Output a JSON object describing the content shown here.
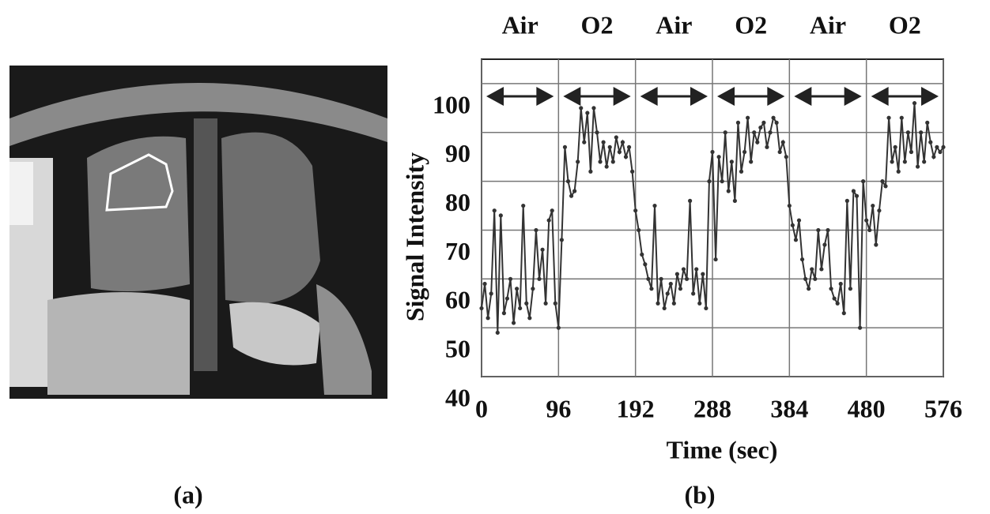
{
  "panel_labels": [
    "(a)",
    "(b)"
  ],
  "chart_data": {
    "type": "line",
    "xlabel": "Time (sec)",
    "ylabel": "Signal Intensity",
    "phases": [
      "Air",
      "O2",
      "Air",
      "O2",
      "Air",
      "O2"
    ],
    "color": "#333333",
    "x": [
      0,
      4,
      8,
      12,
      16,
      20,
      24,
      28,
      32,
      36,
      40,
      44,
      48,
      52,
      56,
      60,
      64,
      68,
      72,
      76,
      80,
      84,
      88,
      92,
      96,
      100,
      104,
      108,
      112,
      116,
      120,
      124,
      128,
      132,
      136,
      140,
      144,
      148,
      152,
      156,
      160,
      164,
      168,
      172,
      176,
      180,
      184,
      188,
      192,
      196,
      200,
      204,
      208,
      212,
      216,
      220,
      224,
      228,
      232,
      236,
      240,
      244,
      248,
      252,
      256,
      260,
      264,
      268,
      272,
      276,
      280,
      284,
      288,
      292,
      296,
      300,
      304,
      308,
      312,
      316,
      320,
      324,
      328,
      332,
      336,
      340,
      344,
      348,
      352,
      356,
      360,
      364,
      368,
      372,
      376,
      380,
      384,
      388,
      392,
      396,
      400,
      404,
      408,
      412,
      416,
      420,
      424,
      428,
      432,
      436,
      440,
      444,
      448,
      452,
      456,
      460,
      464,
      468,
      472,
      476,
      480,
      484,
      488,
      492,
      496,
      500,
      504,
      508,
      512,
      516,
      520,
      524,
      528,
      532,
      536,
      540,
      544,
      548,
      552,
      556,
      560,
      564,
      568,
      572,
      576
    ],
    "values": [
      54,
      59,
      52,
      57,
      74,
      49,
      73,
      53,
      56,
      60,
      51,
      58,
      54,
      75,
      55,
      52,
      58,
      70,
      60,
      66,
      55,
      72,
      74,
      55,
      50,
      68,
      87,
      80,
      77,
      78,
      84,
      95,
      88,
      94,
      82,
      95,
      90,
      84,
      88,
      83,
      87,
      84,
      89,
      86,
      88,
      85,
      87,
      82,
      74,
      70,
      65,
      63,
      60,
      58,
      75,
      55,
      60,
      54,
      57,
      59,
      55,
      61,
      58,
      62,
      60,
      76,
      57,
      62,
      55,
      61,
      54,
      80,
      86,
      64,
      85,
      80,
      90,
      78,
      84,
      76,
      92,
      82,
      86,
      93,
      84,
      90,
      88,
      91,
      92,
      87,
      90,
      93,
      92,
      86,
      88,
      85,
      75,
      71,
      68,
      72,
      64,
      60,
      58,
      62,
      60,
      70,
      62,
      67,
      70,
      58,
      56,
      55,
      59,
      53,
      76,
      58,
      78,
      77,
      50,
      80,
      72,
      70,
      75,
      67,
      74,
      80,
      79,
      93,
      84,
      87,
      82,
      93,
      84,
      90,
      86,
      96,
      83,
      90,
      84,
      92,
      88,
      85,
      87,
      86,
      87
    ],
    "xlim": [
      0,
      576
    ],
    "xticks": [
      0,
      96,
      192,
      288,
      384,
      480,
      576
    ],
    "ylim": [
      40,
      105
    ],
    "yticks": [
      40,
      50,
      60,
      70,
      80,
      90,
      100
    ],
    "grid": true
  }
}
